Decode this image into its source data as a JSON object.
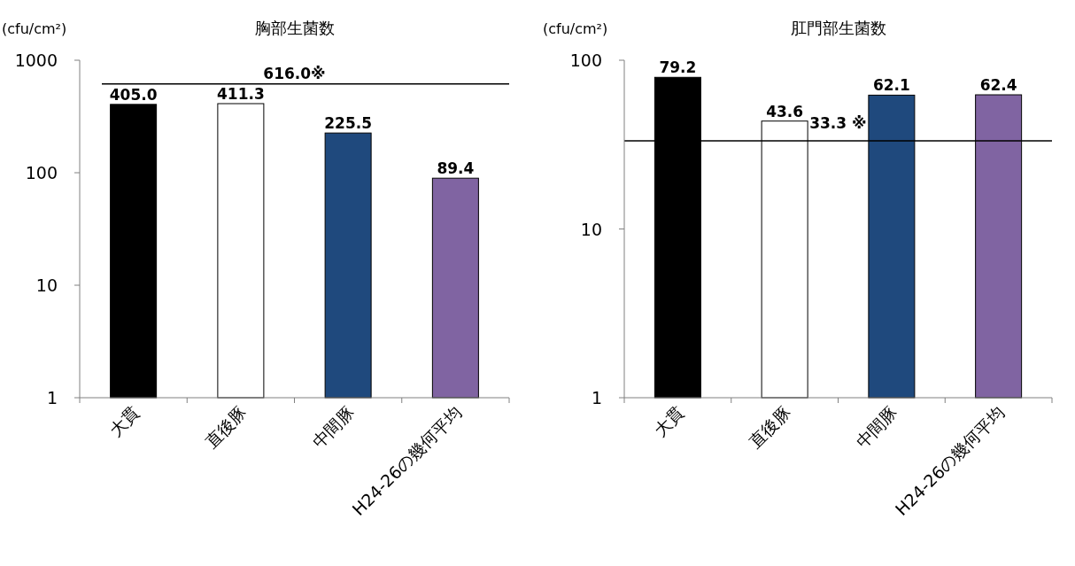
{
  "chart_data": [
    {
      "type": "bar",
      "title": "胸部生菌数",
      "ylabel": "(cfu/cm²)",
      "categories": [
        "大貫",
        "直後豚",
        "中間豚",
        "H24-26の幾何平均"
      ],
      "values": [
        405.0,
        411.3,
        225.5,
        89.4
      ],
      "colors": [
        "#000000",
        "#ffffff",
        "#1f497d",
        "#8064a2"
      ],
      "log": true,
      "ylim": [
        1,
        1000
      ],
      "yticks": [
        1,
        10,
        100,
        1000
      ],
      "value_labels": [
        "405.0",
        "411.3",
        "225.5",
        "89.4"
      ],
      "ref_lines": [
        {
          "axis": "y",
          "value": 616.0,
          "label": "616.0※",
          "color": "#000000"
        }
      ]
    },
    {
      "type": "bar",
      "title": "肛門部生菌数",
      "ylabel": "(cfu/cm²)",
      "categories": [
        "大貫",
        "直後豚",
        "中間豚",
        "H24-26の幾何平均"
      ],
      "values": [
        79.2,
        43.6,
        62.1,
        62.4
      ],
      "colors": [
        "#000000",
        "#ffffff",
        "#1f497d",
        "#8064a2"
      ],
      "log": true,
      "ylim": [
        1,
        100
      ],
      "yticks": [
        1,
        10,
        100
      ],
      "value_labels": [
        "79.2",
        "43.6",
        "62.1",
        "62.4"
      ],
      "ref_lines": [
        {
          "axis": "y",
          "value": 33.3,
          "label": "33.3 ※",
          "color": "#000000"
        }
      ]
    }
  ]
}
